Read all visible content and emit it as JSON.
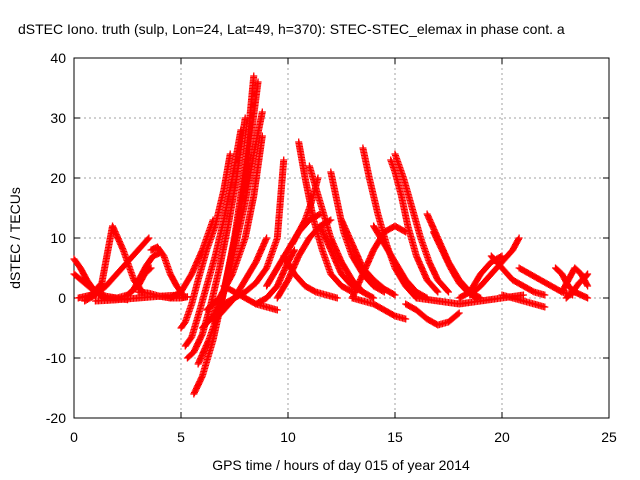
{
  "chart_data": {
    "type": "scatter",
    "title": "dSTEC Iono. truth (sulp, Lon=24, Lat=49, h=370): STEC-STEC_elemax in phase cont. a",
    "xlabel": "GPS time / hours of day 015 of year 2014",
    "ylabel": "dSTEC  / TECUs",
    "xlim": [
      0,
      25
    ],
    "ylim": [
      -20,
      40
    ],
    "xticks": [
      0,
      5,
      10,
      15,
      20,
      25
    ],
    "yticks": [
      -20,
      -10,
      0,
      10,
      20,
      30,
      40
    ],
    "xtick_labels": [
      "0",
      "5",
      "10",
      "15",
      "20",
      "25"
    ],
    "ytick_labels": [
      "-20",
      "-10",
      "0",
      "10",
      "20",
      "30",
      "40"
    ],
    "grid": true,
    "marker": "+",
    "color": "#ff0000",
    "series": [
      {
        "x": [
          0.0,
          0.3,
          0.6,
          0.9,
          1.2,
          1.5
        ],
        "y": [
          6.5,
          5.0,
          3.0,
          1.5,
          0.5,
          0.0
        ]
      },
      {
        "x": [
          0.0,
          0.5,
          1.0,
          1.5,
          2.0,
          2.5
        ],
        "y": [
          4.0,
          2.5,
          1.0,
          0.3,
          0.0,
          -0.3
        ]
      },
      {
        "x": [
          0.2,
          0.8,
          1.3,
          1.8,
          2.3,
          2.8,
          3.2
        ],
        "y": [
          0.0,
          0.5,
          2.5,
          12.0,
          8.0,
          3.0,
          1.0
        ]
      },
      {
        "x": [
          0.5,
          1.0,
          1.5,
          2.0,
          2.5,
          3.0,
          3.5
        ],
        "y": [
          -0.5,
          0.5,
          2.0,
          4.0,
          6.0,
          8.0,
          10.0
        ]
      },
      {
        "x": [
          1.5,
          2.0,
          2.5,
          3.0,
          3.3,
          3.6
        ],
        "y": [
          0.0,
          0.0,
          0.5,
          2.0,
          4.0,
          5.0
        ]
      },
      {
        "x": [
          2.5,
          2.8,
          3.1,
          3.4,
          3.7,
          4.0
        ],
        "y": [
          0.5,
          1.5,
          3.5,
          5.5,
          7.0,
          7.5
        ]
      },
      {
        "x": [
          3.6,
          3.9,
          4.2,
          4.5,
          4.8,
          5.1
        ],
        "y": [
          8.0,
          8.5,
          7.0,
          4.0,
          2.0,
          0.5
        ]
      },
      {
        "x": [
          3.0,
          3.5,
          4.0,
          4.5,
          5.0,
          5.3
        ],
        "y": [
          1.0,
          0.8,
          0.3,
          0.0,
          0.0,
          0.2
        ]
      },
      {
        "x": [
          5.0,
          5.2,
          5.5,
          5.8,
          6.2,
          6.6,
          7.0,
          7.3
        ],
        "y": [
          -5.0,
          -4.0,
          -1.0,
          3.0,
          8.0,
          12.0,
          18.0,
          24.0
        ]
      },
      {
        "x": [
          5.2,
          5.5,
          5.8,
          6.2,
          6.6,
          7.0,
          7.4,
          7.8
        ],
        "y": [
          -8.0,
          -6.5,
          -3.0,
          2.0,
          7.0,
          13.0,
          20.0,
          28.0
        ]
      },
      {
        "x": [
          5.3,
          5.6,
          6.0,
          6.4,
          6.8,
          7.2,
          7.6,
          8.0
        ],
        "y": [
          -10.0,
          -9.0,
          -6.0,
          -1.0,
          5.0,
          12.0,
          20.0,
          30.0
        ]
      },
      {
        "x": [
          5.6,
          6.0,
          6.5,
          7.0,
          7.5,
          8.0,
          8.4
        ],
        "y": [
          -16.0,
          -13.0,
          -7.0,
          1.0,
          10.0,
          22.0,
          37.0
        ]
      },
      {
        "x": [
          5.8,
          6.3,
          6.8,
          7.3,
          7.8,
          8.2,
          8.6
        ],
        "y": [
          -11.0,
          -7.0,
          -2.0,
          6.0,
          15.0,
          25.0,
          36.0
        ]
      },
      {
        "x": [
          6.0,
          6.5,
          7.0,
          7.5,
          8.0,
          8.4,
          8.8
        ],
        "y": [
          -5.0,
          -3.0,
          1.0,
          8.0,
          16.0,
          24.0,
          31.0
        ]
      },
      {
        "x": [
          6.2,
          6.8,
          7.4,
          8.0,
          8.4,
          8.8
        ],
        "y": [
          -2.0,
          0.0,
          4.0,
          10.0,
          17.0,
          27.0
        ]
      },
      {
        "x": [
          6.5,
          7.0,
          7.5,
          8.0,
          8.5,
          9.0
        ],
        "y": [
          -4.0,
          -2.0,
          0.0,
          3.0,
          6.0,
          10.0
        ]
      },
      {
        "x": [
          7.0,
          7.5,
          8.0,
          8.5,
          9.0,
          9.5,
          9.8
        ],
        "y": [
          -1.0,
          0.0,
          1.0,
          2.5,
          5.0,
          10.0,
          23.0
        ]
      },
      {
        "x": [
          7.0,
          7.5,
          8.0,
          8.5,
          9.0,
          9.5
        ],
        "y": [
          2.0,
          1.0,
          0.0,
          -1.0,
          -1.5,
          -2.0
        ]
      },
      {
        "x": [
          8.5,
          9.0,
          9.5,
          10.0,
          10.3
        ],
        "y": [
          -1.0,
          0.0,
          2.0,
          6.0,
          8.0
        ]
      },
      {
        "x": [
          9.0,
          9.5,
          10.0,
          10.5,
          11.0,
          11.5
        ],
        "y": [
          2.0,
          5.0,
          8.0,
          11.0,
          13.0,
          14.0
        ]
      },
      {
        "x": [
          9.5,
          10.0,
          10.5,
          11.0,
          11.5,
          12.0
        ],
        "y": [
          0.0,
          3.0,
          7.0,
          10.0,
          12.0,
          13.0
        ]
      },
      {
        "x": [
          9.8,
          10.3,
          10.8,
          11.3,
          11.8,
          12.3
        ],
        "y": [
          7.0,
          4.0,
          2.0,
          1.0,
          0.5,
          0.0
        ]
      },
      {
        "x": [
          10.5,
          10.8,
          11.2,
          11.6,
          12.0,
          12.5,
          13.0
        ],
        "y": [
          26.0,
          20.0,
          13.0,
          8.0,
          4.0,
          2.0,
          1.0
        ]
      },
      {
        "x": [
          10.2,
          10.5,
          10.8,
          11.1,
          11.4
        ],
        "y": [
          9.0,
          11.0,
          13.0,
          16.0,
          20.0
        ]
      },
      {
        "x": [
          11.0,
          11.5,
          12.0,
          12.5,
          13.0,
          13.5
        ],
        "y": [
          22.0,
          16.0,
          10.0,
          6.0,
          3.0,
          1.0
        ]
      },
      {
        "x": [
          11.5,
          12.0,
          12.5,
          13.0,
          13.5,
          14.0
        ],
        "y": [
          12.0,
          8.0,
          4.0,
          2.0,
          1.0,
          0.0
        ]
      },
      {
        "x": [
          12.0,
          12.3,
          12.6,
          13.0,
          13.5,
          14.0,
          14.5
        ],
        "y": [
          21.0,
          16.0,
          11.0,
          7.0,
          4.0,
          2.0,
          1.0
        ]
      },
      {
        "x": [
          12.5,
          13.0,
          13.5,
          14.0,
          14.5,
          15.0
        ],
        "y": [
          13.0,
          9.0,
          5.0,
          3.0,
          1.5,
          0.5
        ]
      },
      {
        "x": [
          13.0,
          13.5,
          14.0,
          14.5,
          15.0,
          15.5
        ],
        "y": [
          0.0,
          4.0,
          8.0,
          11.0,
          12.0,
          11.0
        ]
      },
      {
        "x": [
          13.5,
          13.8,
          14.2,
          14.6,
          15.0,
          15.5,
          16.0
        ],
        "y": [
          25.0,
          20.0,
          14.0,
          9.0,
          5.0,
          2.0,
          0.0
        ]
      },
      {
        "x": [
          14.0,
          14.5,
          15.0,
          15.5,
          16.0,
          16.5
        ],
        "y": [
          12.0,
          9.0,
          6.0,
          3.0,
          1.0,
          0.0
        ]
      },
      {
        "x": [
          14.8,
          15.0,
          15.3,
          15.6,
          16.0,
          16.5,
          17.0
        ],
        "y": [
          23.0,
          21.0,
          17.0,
          12.0,
          7.0,
          3.0,
          1.0
        ]
      },
      {
        "x": [
          15.0,
          15.4,
          15.8,
          16.2,
          16.6,
          17.0,
          17.5
        ],
        "y": [
          24.0,
          20.0,
          15.0,
          10.0,
          6.0,
          3.0,
          1.0
        ]
      },
      {
        "x": [
          13.0,
          13.5,
          14.0,
          14.5,
          15.0,
          15.5
        ],
        "y": [
          0.0,
          -0.5,
          -1.0,
          -2.0,
          -3.0,
          -3.5
        ]
      },
      {
        "x": [
          15.5,
          16.0,
          16.5,
          17.0,
          17.5,
          18.0
        ],
        "y": [
          -1.0,
          -2.0,
          -3.5,
          -4.5,
          -4.0,
          -2.5
        ]
      },
      {
        "x": [
          16.5,
          17.0,
          17.5,
          18.0,
          18.5,
          19.0
        ],
        "y": [
          14.0,
          10.0,
          6.0,
          3.0,
          1.0,
          0.0
        ]
      },
      {
        "x": [
          16.8,
          17.2,
          17.6,
          18.0,
          18.4,
          18.8
        ],
        "y": [
          11.0,
          8.0,
          5.0,
          2.5,
          1.0,
          0.0
        ]
      },
      {
        "x": [
          18.0,
          18.5,
          19.0,
          19.5,
          20.0
        ],
        "y": [
          0.0,
          1.0,
          4.0,
          6.0,
          7.0
        ]
      },
      {
        "x": [
          18.5,
          19.0,
          19.5,
          20.0,
          20.5,
          20.8
        ],
        "y": [
          0.5,
          2.0,
          4.0,
          6.0,
          8.0,
          10.0
        ]
      },
      {
        "x": [
          19.5,
          20.0,
          20.5,
          21.0,
          21.5,
          22.0
        ],
        "y": [
          7.0,
          5.0,
          3.0,
          2.0,
          1.0,
          0.5
        ]
      },
      {
        "x": [
          20.8,
          21.3,
          21.8,
          22.3,
          22.8,
          23.3
        ],
        "y": [
          5.0,
          4.0,
          3.0,
          2.0,
          1.0,
          0.5
        ]
      },
      {
        "x": [
          22.5,
          22.8,
          23.1,
          23.4,
          23.7,
          24.0
        ],
        "y": [
          5.0,
          4.0,
          2.0,
          1.0,
          0.5,
          0.0
        ]
      },
      {
        "x": [
          22.8,
          23.1,
          23.4,
          23.7,
          24.0
        ],
        "y": [
          1.0,
          3.0,
          5.0,
          4.0,
          2.0
        ]
      },
      {
        "x": [
          23.0,
          23.3,
          23.6,
          23.9,
          24.0
        ],
        "y": [
          0.0,
          1.0,
          2.5,
          3.5,
          4.0
        ]
      },
      {
        "x": [
          20.0,
          20.5,
          21.0,
          21.5,
          22.0
        ],
        "y": [
          0.5,
          0.0,
          -0.5,
          -1.0,
          -1.5
        ]
      },
      {
        "x": [
          16.0,
          17.0,
          18.0,
          19.0,
          20.0,
          21.0
        ],
        "y": [
          0.0,
          -0.5,
          -1.0,
          -0.5,
          0.0,
          0.5
        ]
      },
      {
        "x": [
          4.5,
          5.0,
          5.5,
          6.0,
          6.5
        ],
        "y": [
          0.0,
          1.0,
          4.0,
          8.0,
          13.0
        ]
      },
      {
        "x": [
          1.0,
          2.0,
          3.0,
          4.0,
          5.0
        ],
        "y": [
          -0.5,
          -0.3,
          0.0,
          0.3,
          0.5
        ]
      }
    ]
  }
}
